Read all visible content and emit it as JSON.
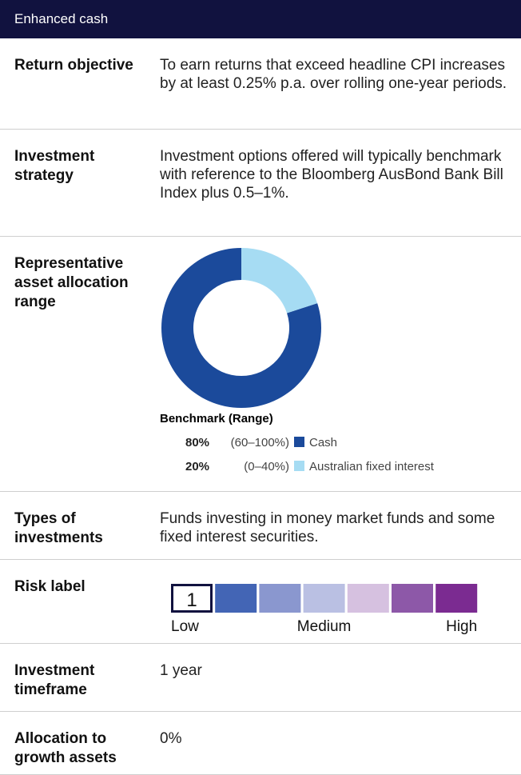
{
  "header": {
    "title": "Enhanced cash"
  },
  "return_objective": {
    "label": "Return objective",
    "text": "To earn returns that exceed headline CPI increases by at least 0.25% p.a. over rolling one-year periods."
  },
  "investment_strategy": {
    "label": "Investment strategy",
    "text": "Investment options offered will typically benchmark with reference to the Bloomberg AusBond Bank Bill Index plus 0.5–1%."
  },
  "asset_allocation": {
    "label": "Representative asset allocation range",
    "legend_title": "Benchmark (Range)",
    "series": [
      {
        "name": "Cash",
        "value": 80,
        "value_label": "80%",
        "range": "(60–100%)",
        "color": "#1b4a9b"
      },
      {
        "name": "Australian fixed interest",
        "value": 20,
        "value_label": "20%",
        "range": "(0–40%)",
        "color": "#a6dcf3"
      }
    ]
  },
  "types_of_investments": {
    "label": "Types of investments",
    "text": "Funds investing in money market funds and some fixed interest securities."
  },
  "risk": {
    "label": "Risk label",
    "level": 1,
    "colors": [
      "#2a4aa0",
      "#4365b5",
      "#8a97cf",
      "#bac0e3",
      "#d6c1e0",
      "#8d58a8",
      "#7b2b91"
    ],
    "scale_labels": [
      "Low",
      "Medium",
      "High"
    ]
  },
  "investment_timeframe": {
    "label": "Investment timeframe",
    "text": "1 year"
  },
  "growth_allocation": {
    "label": "Allocation to growth assets",
    "text": "0%"
  }
}
